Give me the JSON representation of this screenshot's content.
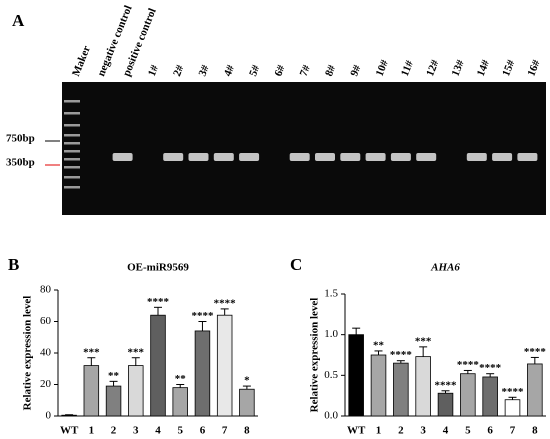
{
  "gel": {
    "panel": "A",
    "lanes": [
      "Maker",
      "negative control",
      "positive control",
      "1#",
      "2#",
      "3#",
      "4#",
      "5#",
      "6#",
      "7#",
      "8#",
      "9#",
      "10#",
      "11#",
      "12#",
      "13#",
      "14#",
      "15#",
      "16#"
    ],
    "markers": [
      "750bp",
      "350bp"
    ],
    "marker_colors": [
      "#000000",
      "#e00000"
    ]
  },
  "chart_data": [
    {
      "type": "bar",
      "panel": "B",
      "title": "OE-miR9569",
      "ylabel": "Relative expression level",
      "categories": [
        "WT",
        "1",
        "2",
        "3",
        "4",
        "5",
        "6",
        "7",
        "8"
      ],
      "ylim": [
        0,
        80
      ],
      "yticks": [
        0,
        20,
        40,
        60,
        80
      ],
      "series": [
        {
          "values": [
            0.5,
            32,
            19,
            32,
            64,
            18,
            54,
            64,
            17
          ],
          "errors": [
            0.3,
            5,
            3,
            5,
            5,
            2,
            6,
            4,
            2
          ],
          "colors": [
            "#ffffff",
            "#a6a6a6",
            "#808080",
            "#d9d9d9",
            "#5f5f5f",
            "#a6a6a6",
            "#6e6e6e",
            "#e8e8e8",
            "#a6a6a6"
          ]
        }
      ],
      "annotations": [
        null,
        "***",
        "**",
        "***",
        "****",
        "**",
        "****",
        "****",
        "*"
      ]
    },
    {
      "type": "bar",
      "panel": "C",
      "title": "AHA6",
      "ylabel": "Relative expression level",
      "categories": [
        "WT",
        "1",
        "2",
        "3",
        "4",
        "5",
        "6",
        "7",
        "8"
      ],
      "ylim": [
        0,
        1.5
      ],
      "yticks": [
        {
          "value": 0,
          "label": "0.0"
        },
        {
          "value": 0.5,
          "label": "0.5"
        },
        {
          "value": 1,
          "label": "1.0"
        },
        {
          "value": 1.5,
          "label": "1.5"
        }
      ],
      "series": [
        {
          "values": [
            1.0,
            0.75,
            0.65,
            0.73,
            0.28,
            0.52,
            0.48,
            0.2,
            0.64
          ],
          "errors": [
            0.08,
            0.05,
            0.03,
            0.12,
            0.03,
            0.04,
            0.04,
            0.03,
            0.08
          ],
          "colors": [
            "#000000",
            "#a6a6a6",
            "#808080",
            "#d9d9d9",
            "#5f5f5f",
            "#a6a6a6",
            "#6e6e6e",
            "#ffffff",
            "#a6a6a6"
          ]
        }
      ],
      "annotations": [
        null,
        "**",
        "****",
        "***",
        "****",
        "****",
        "****",
        "****",
        "****"
      ]
    }
  ]
}
